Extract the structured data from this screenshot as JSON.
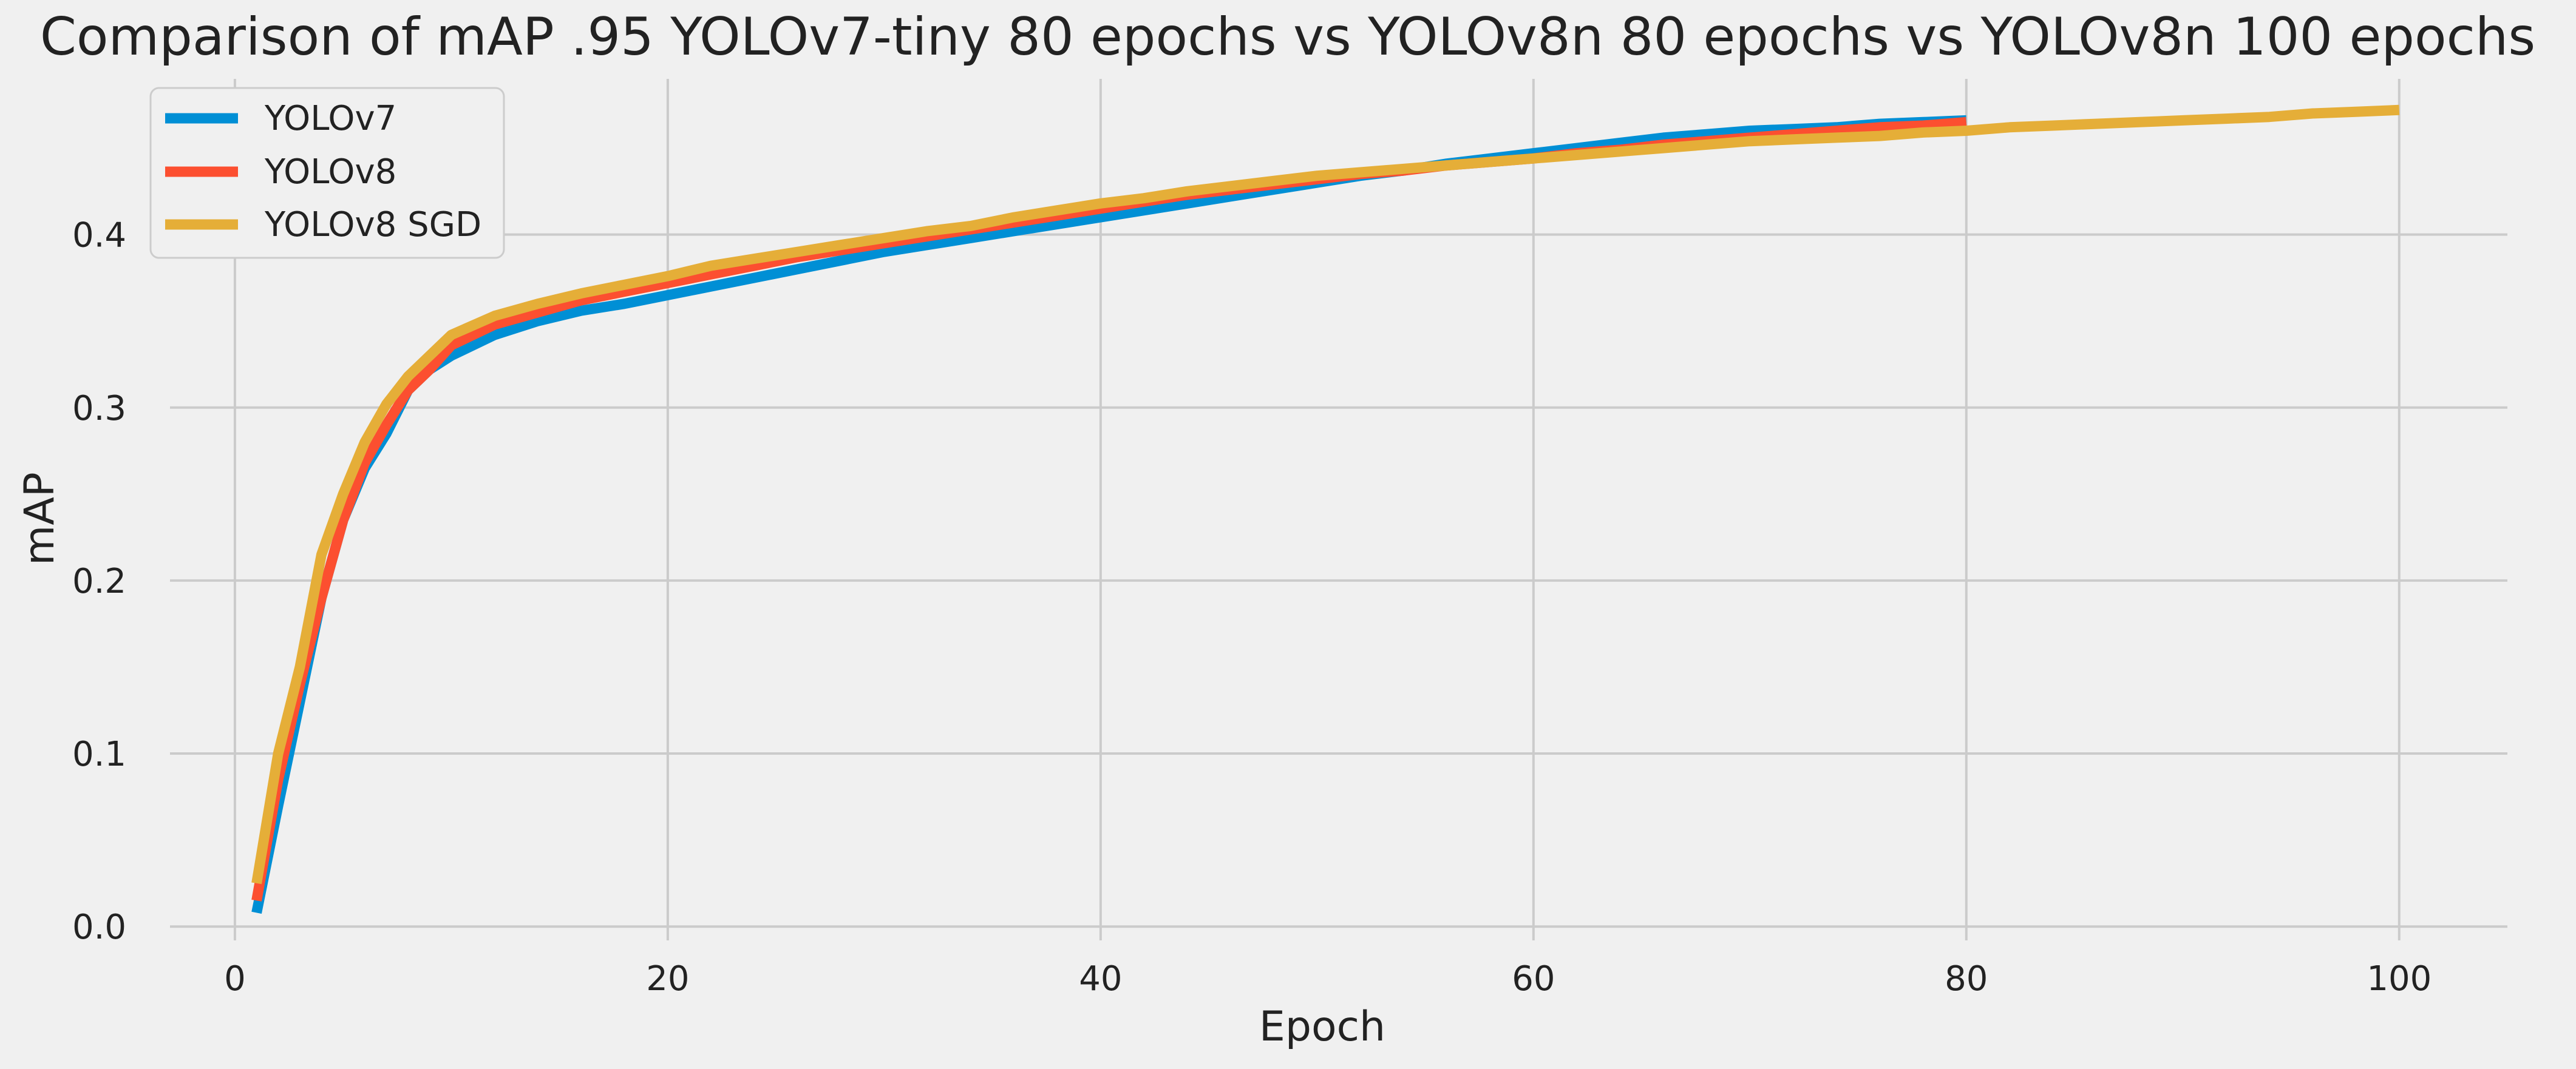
{
  "chart_data": {
    "type": "line",
    "title": "Comparison of mAP .95 YOLOv7-tiny 80 epochs vs YOLOv8n 80 epochs vs  YOLOv8n 100 epochs",
    "xlabel": "Epoch",
    "ylabel": "mAP",
    "xlim": [
      -3,
      105
    ],
    "ylim": [
      -0.008,
      0.49
    ],
    "xticks": [
      0,
      20,
      40,
      60,
      80,
      100
    ],
    "yticks": [
      0.0,
      0.1,
      0.2,
      0.3,
      0.4
    ],
    "xtick_labels": [
      "0",
      "20",
      "40",
      "60",
      "80",
      "100"
    ],
    "ytick_labels": [
      "0.0",
      "0.1",
      "0.2",
      "0.3",
      "0.4"
    ],
    "grid": true,
    "legend_position": "top-left",
    "series": [
      {
        "name": "YOLOv7",
        "color": "#008fd5",
        "x": [
          1,
          2,
          3,
          4,
          5,
          6,
          7,
          8,
          9,
          10,
          12,
          14,
          16,
          18,
          20,
          22,
          24,
          26,
          28,
          30,
          32,
          34,
          36,
          38,
          40,
          42,
          44,
          46,
          48,
          50,
          52,
          54,
          56,
          58,
          60,
          62,
          64,
          66,
          68,
          70,
          72,
          74,
          76,
          78,
          80
        ],
        "y": [
          0.008,
          0.07,
          0.13,
          0.19,
          0.235,
          0.265,
          0.285,
          0.31,
          0.322,
          0.33,
          0.342,
          0.35,
          0.356,
          0.36,
          0.365,
          0.37,
          0.375,
          0.38,
          0.385,
          0.39,
          0.394,
          0.398,
          0.402,
          0.406,
          0.41,
          0.414,
          0.418,
          0.422,
          0.426,
          0.43,
          0.434,
          0.437,
          0.441,
          0.444,
          0.447,
          0.45,
          0.453,
          0.456,
          0.458,
          0.46,
          0.461,
          0.462,
          0.464,
          0.465,
          0.466
        ]
      },
      {
        "name": "YOLOv8",
        "color": "#fc4f30",
        "x": [
          1,
          2,
          3,
          4,
          5,
          6,
          7,
          8,
          9,
          10,
          12,
          14,
          16,
          18,
          20,
          22,
          24,
          26,
          28,
          30,
          32,
          34,
          36,
          38,
          40,
          42,
          44,
          46,
          48,
          50,
          52,
          54,
          56,
          58,
          60,
          62,
          64,
          66,
          68,
          70,
          72,
          74,
          76,
          78,
          80
        ],
        "y": [
          0.015,
          0.085,
          0.14,
          0.19,
          0.235,
          0.268,
          0.29,
          0.31,
          0.322,
          0.336,
          0.348,
          0.355,
          0.362,
          0.367,
          0.372,
          0.377,
          0.382,
          0.387,
          0.391,
          0.395,
          0.399,
          0.403,
          0.407,
          0.411,
          0.415,
          0.419,
          0.423,
          0.426,
          0.429,
          0.432,
          0.435,
          0.437,
          0.44,
          0.442,
          0.444,
          0.447,
          0.449,
          0.452,
          0.454,
          0.456,
          0.458,
          0.46,
          0.462,
          0.463,
          0.465
        ]
      },
      {
        "name": "YOLOv8 SGD",
        "color": "#e5ae38",
        "x": [
          1,
          2,
          3,
          4,
          5,
          6,
          7,
          8,
          9,
          10,
          12,
          14,
          16,
          18,
          20,
          22,
          24,
          26,
          28,
          30,
          32,
          34,
          36,
          38,
          40,
          42,
          44,
          46,
          48,
          50,
          52,
          54,
          56,
          58,
          60,
          62,
          64,
          66,
          68,
          70,
          72,
          74,
          76,
          78,
          80,
          82,
          84,
          86,
          88,
          90,
          92,
          94,
          96,
          98,
          100
        ],
        "y": [
          0.025,
          0.1,
          0.15,
          0.215,
          0.25,
          0.28,
          0.302,
          0.318,
          0.33,
          0.342,
          0.353,
          0.36,
          0.366,
          0.371,
          0.376,
          0.382,
          0.386,
          0.39,
          0.394,
          0.398,
          0.402,
          0.405,
          0.41,
          0.414,
          0.418,
          0.421,
          0.425,
          0.428,
          0.431,
          0.434,
          0.436,
          0.438,
          0.44,
          0.442,
          0.444,
          0.446,
          0.448,
          0.45,
          0.452,
          0.454,
          0.455,
          0.456,
          0.457,
          0.459,
          0.46,
          0.462,
          0.463,
          0.464,
          0.465,
          0.466,
          0.467,
          0.468,
          0.47,
          0.471,
          0.472
        ]
      }
    ]
  }
}
